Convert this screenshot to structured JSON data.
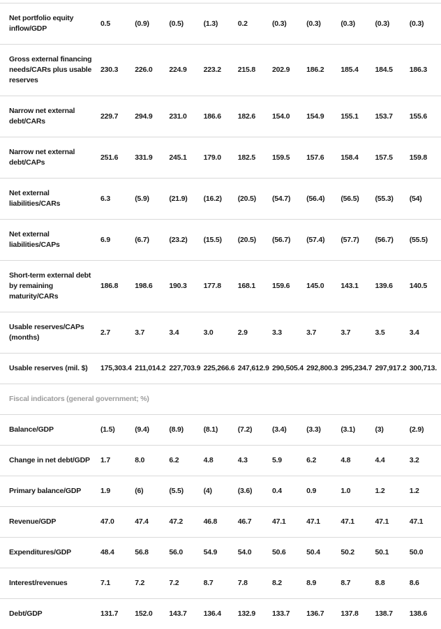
{
  "colors": {
    "text": "#1a1a1a",
    "section_header": "#9d9d9d",
    "border": "#d9d9d9",
    "background": "#ffffff"
  },
  "table": {
    "columns_count": 10,
    "sections": [
      {
        "header": null,
        "rows": [
          {
            "label": "Net portfolio equity inflow/GDP",
            "values": [
              "0.5",
              "(0.9)",
              "(0.5)",
              "(1.3)",
              "0.2",
              "(0.3)",
              "(0.3)",
              "(0.3)",
              "(0.3)",
              "(0.3)"
            ]
          },
          {
            "label": "Gross external financing needs/CARs plus usable reserves",
            "values": [
              "230.3",
              "226.0",
              "224.9",
              "223.2",
              "215.8",
              "202.9",
              "186.2",
              "185.4",
              "184.5",
              "186.3"
            ]
          },
          {
            "label": "Narrow net external debt/CARs",
            "values": [
              "229.7",
              "294.9",
              "231.0",
              "186.6",
              "182.6",
              "154.0",
              "154.9",
              "155.1",
              "153.7",
              "155.6"
            ]
          },
          {
            "label": "Narrow net external debt/CAPs",
            "values": [
              "251.6",
              "331.9",
              "245.1",
              "179.0",
              "182.5",
              "159.5",
              "157.6",
              "158.4",
              "157.5",
              "159.8"
            ]
          },
          {
            "label": "Net external liabilities/CARs",
            "values": [
              "6.3",
              "(5.9)",
              "(21.9)",
              "(16.2)",
              "(20.5)",
              "(54.7)",
              "(56.4)",
              "(56.5)",
              "(55.3)",
              "(54)"
            ]
          },
          {
            "label": "Net external liabilities/CAPs",
            "values": [
              "6.9",
              "(6.7)",
              "(23.2)",
              "(15.5)",
              "(20.5)",
              "(56.7)",
              "(57.4)",
              "(57.7)",
              "(56.7)",
              "(55.5)"
            ]
          },
          {
            "label": "Short-term external debt by remaining maturity/CARs",
            "values": [
              "186.8",
              "198.6",
              "190.3",
              "177.8",
              "168.1",
              "159.6",
              "145.0",
              "143.1",
              "139.6",
              "140.5"
            ]
          },
          {
            "label": "Usable reserves/CAPs (months)",
            "values": [
              "2.7",
              "3.7",
              "3.4",
              "3.0",
              "2.9",
              "3.3",
              "3.7",
              "3.7",
              "3.5",
              "3.4"
            ]
          },
          {
            "label": "Usable reserves (mil. $)",
            "values": [
              "175,303.4",
              "211,014.2",
              "227,703.9",
              "225,266.6",
              "247,612.9",
              "290,505.4",
              "292,800.3",
              "295,234.7",
              "297,917.2",
              "300,713."
            ]
          }
        ]
      },
      {
        "header": "Fiscal indicators (general government; %)",
        "rows": [
          {
            "label": "Balance/GDP",
            "values": [
              "(1.5)",
              "(9.4)",
              "(8.9)",
              "(8.1)",
              "(7.2)",
              "(3.4)",
              "(3.3)",
              "(3.1)",
              "(3)",
              "(2.9)"
            ]
          },
          {
            "label": "Change in net debt/GDP",
            "values": [
              "1.7",
              "8.0",
              "6.2",
              "4.8",
              "4.3",
              "5.9",
              "6.2",
              "4.8",
              "4.4",
              "3.2"
            ]
          },
          {
            "label": "Primary balance/GDP",
            "values": [
              "1.9",
              "(6)",
              "(5.5)",
              "(4)",
              "(3.6)",
              "0.4",
              "0.9",
              "1.0",
              "1.2",
              "1.2"
            ]
          },
          {
            "label": "Revenue/GDP",
            "values": [
              "47.0",
              "47.4",
              "47.2",
              "46.8",
              "46.7",
              "47.1",
              "47.1",
              "47.1",
              "47.1",
              "47.1"
            ]
          },
          {
            "label": "Expenditures/GDP",
            "values": [
              "48.4",
              "56.8",
              "56.0",
              "54.9",
              "54.0",
              "50.6",
              "50.4",
              "50.2",
              "50.1",
              "50.0"
            ]
          },
          {
            "label": "Interest/revenues",
            "values": [
              "7.1",
              "7.2",
              "7.2",
              "8.7",
              "7.8",
              "8.2",
              "8.9",
              "8.7",
              "8.8",
              "8.6"
            ]
          },
          {
            "label": "Debt/GDP",
            "values": [
              "131.7",
              "152.0",
              "143.7",
              "136.4",
              "132.9",
              "133.7",
              "136.7",
              "137.8",
              "138.7",
              "138.6"
            ]
          }
        ]
      }
    ]
  }
}
